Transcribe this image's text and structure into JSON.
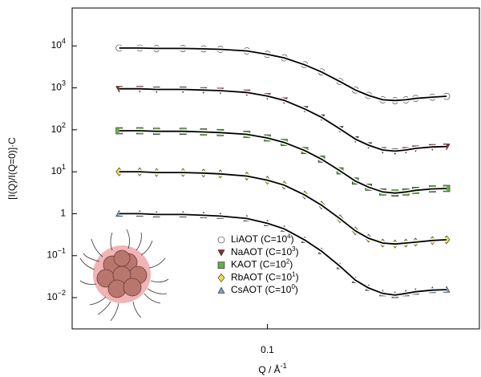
{
  "chart_data": {
    "type": "scatter",
    "x_label": [
      "Q / Å",
      "-1"
    ],
    "y_label": "[I(Q)/I(Q=0)]·C",
    "xscale": "log",
    "yscale": "log",
    "xlim": [
      0.012,
      1.0
    ],
    "ylim": [
      0.0018,
      80000
    ],
    "xticks": [
      0.1
    ],
    "yticks": [
      {
        "value": 10000,
        "label": "10",
        "sup": "4"
      },
      {
        "value": 1000,
        "label": "10",
        "sup": "3"
      },
      {
        "value": 100,
        "label": "10",
        "sup": "2"
      },
      {
        "value": 10,
        "label": "10",
        "sup": "1"
      },
      1,
      {
        "value": 0.1,
        "label": "10",
        "sup": "−1"
      },
      {
        "value": 0.01,
        "label": "10",
        "sup": "−2"
      }
    ],
    "x": [
      0.02,
      0.025,
      0.03,
      0.04,
      0.05,
      0.06,
      0.08,
      0.1,
      0.12,
      0.15,
      0.18,
      0.22,
      0.26,
      0.3,
      0.35,
      0.4,
      0.45,
      0.5,
      0.6,
      0.7
    ],
    "series": [
      {
        "name": [
          "LiAOT (C=10",
          "4",
          ")"
        ],
        "marker": "circle",
        "color": "#ffffff",
        "values": [
          8900,
          8900,
          8700,
          8700,
          8500,
          8300,
          7600,
          6300,
          5200,
          3550,
          2400,
          1410,
          890,
          660,
          520,
          500,
          520,
          560,
          600,
          630
        ]
      },
      {
        "name": [
          "NaAOT (C=10",
          "3",
          ")"
        ],
        "marker": "triangle-down",
        "color": "#8c2f2f",
        "values": [
          950,
          950,
          918,
          918,
          886,
          859,
          777,
          637,
          504,
          315,
          199,
          105,
          60,
          43,
          33,
          31,
          33,
          36,
          39,
          40
        ]
      },
      {
        "name": [
          "KAOT (C=10",
          "2",
          ")"
        ],
        "marker": "square",
        "color": "#6aab4c",
        "values": [
          95,
          95,
          92,
          92,
          89,
          86,
          78,
          64,
          50,
          32,
          20,
          10.5,
          6.0,
          4.3,
          3.3,
          3.1,
          3.3,
          3.6,
          3.9,
          4.0
        ]
      },
      {
        "name": [
          "RbAOT (C=10",
          "1",
          ")"
        ],
        "marker": "diamond",
        "color": "#e9e23a",
        "values": [
          10,
          10,
          9.6,
          9.6,
          9.3,
          8.9,
          7.9,
          6.3,
          4.8,
          2.8,
          1.6,
          0.76,
          0.39,
          0.26,
          0.2,
          0.19,
          0.2,
          0.21,
          0.23,
          0.24
        ]
      },
      {
        "name": [
          "CsAOT (C=10",
          "0",
          ")"
        ],
        "marker": "triangle-up",
        "color": "#7d9dc8",
        "values": [
          1.0,
          1.0,
          0.957,
          0.957,
          0.916,
          0.877,
          0.769,
          0.592,
          0.436,
          0.236,
          0.128,
          0.056,
          0.026,
          0.017,
          0.0126,
          0.0115,
          0.0126,
          0.0138,
          0.0151,
          0.0155
        ]
      }
    ]
  }
}
